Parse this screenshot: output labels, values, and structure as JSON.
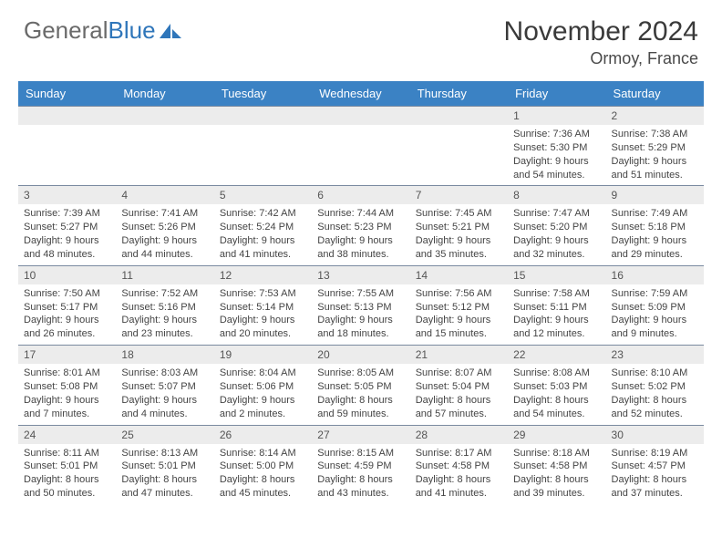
{
  "brand": {
    "part1": "General",
    "part2": "Blue"
  },
  "title": "November 2024",
  "location": "Ormoy, France",
  "header_bg": "#3b82c4",
  "header_text": "#ffffff",
  "daynum_bg": "#ececec",
  "border_color": "#7a8aa0",
  "weekdays": [
    "Sunday",
    "Monday",
    "Tuesday",
    "Wednesday",
    "Thursday",
    "Friday",
    "Saturday"
  ],
  "weeks": [
    [
      null,
      null,
      null,
      null,
      null,
      {
        "n": "1",
        "sr": "7:36 AM",
        "ss": "5:30 PM",
        "dl": "9 hours and 54 minutes."
      },
      {
        "n": "2",
        "sr": "7:38 AM",
        "ss": "5:29 PM",
        "dl": "9 hours and 51 minutes."
      }
    ],
    [
      {
        "n": "3",
        "sr": "7:39 AM",
        "ss": "5:27 PM",
        "dl": "9 hours and 48 minutes."
      },
      {
        "n": "4",
        "sr": "7:41 AM",
        "ss": "5:26 PM",
        "dl": "9 hours and 44 minutes."
      },
      {
        "n": "5",
        "sr": "7:42 AM",
        "ss": "5:24 PM",
        "dl": "9 hours and 41 minutes."
      },
      {
        "n": "6",
        "sr": "7:44 AM",
        "ss": "5:23 PM",
        "dl": "9 hours and 38 minutes."
      },
      {
        "n": "7",
        "sr": "7:45 AM",
        "ss": "5:21 PM",
        "dl": "9 hours and 35 minutes."
      },
      {
        "n": "8",
        "sr": "7:47 AM",
        "ss": "5:20 PM",
        "dl": "9 hours and 32 minutes."
      },
      {
        "n": "9",
        "sr": "7:49 AM",
        "ss": "5:18 PM",
        "dl": "9 hours and 29 minutes."
      }
    ],
    [
      {
        "n": "10",
        "sr": "7:50 AM",
        "ss": "5:17 PM",
        "dl": "9 hours and 26 minutes."
      },
      {
        "n": "11",
        "sr": "7:52 AM",
        "ss": "5:16 PM",
        "dl": "9 hours and 23 minutes."
      },
      {
        "n": "12",
        "sr": "7:53 AM",
        "ss": "5:14 PM",
        "dl": "9 hours and 20 minutes."
      },
      {
        "n": "13",
        "sr": "7:55 AM",
        "ss": "5:13 PM",
        "dl": "9 hours and 18 minutes."
      },
      {
        "n": "14",
        "sr": "7:56 AM",
        "ss": "5:12 PM",
        "dl": "9 hours and 15 minutes."
      },
      {
        "n": "15",
        "sr": "7:58 AM",
        "ss": "5:11 PM",
        "dl": "9 hours and 12 minutes."
      },
      {
        "n": "16",
        "sr": "7:59 AM",
        "ss": "5:09 PM",
        "dl": "9 hours and 9 minutes."
      }
    ],
    [
      {
        "n": "17",
        "sr": "8:01 AM",
        "ss": "5:08 PM",
        "dl": "9 hours and 7 minutes."
      },
      {
        "n": "18",
        "sr": "8:03 AM",
        "ss": "5:07 PM",
        "dl": "9 hours and 4 minutes."
      },
      {
        "n": "19",
        "sr": "8:04 AM",
        "ss": "5:06 PM",
        "dl": "9 hours and 2 minutes."
      },
      {
        "n": "20",
        "sr": "8:05 AM",
        "ss": "5:05 PM",
        "dl": "8 hours and 59 minutes."
      },
      {
        "n": "21",
        "sr": "8:07 AM",
        "ss": "5:04 PM",
        "dl": "8 hours and 57 minutes."
      },
      {
        "n": "22",
        "sr": "8:08 AM",
        "ss": "5:03 PM",
        "dl": "8 hours and 54 minutes."
      },
      {
        "n": "23",
        "sr": "8:10 AM",
        "ss": "5:02 PM",
        "dl": "8 hours and 52 minutes."
      }
    ],
    [
      {
        "n": "24",
        "sr": "8:11 AM",
        "ss": "5:01 PM",
        "dl": "8 hours and 50 minutes."
      },
      {
        "n": "25",
        "sr": "8:13 AM",
        "ss": "5:01 PM",
        "dl": "8 hours and 47 minutes."
      },
      {
        "n": "26",
        "sr": "8:14 AM",
        "ss": "5:00 PM",
        "dl": "8 hours and 45 minutes."
      },
      {
        "n": "27",
        "sr": "8:15 AM",
        "ss": "4:59 PM",
        "dl": "8 hours and 43 minutes."
      },
      {
        "n": "28",
        "sr": "8:17 AM",
        "ss": "4:58 PM",
        "dl": "8 hours and 41 minutes."
      },
      {
        "n": "29",
        "sr": "8:18 AM",
        "ss": "4:58 PM",
        "dl": "8 hours and 39 minutes."
      },
      {
        "n": "30",
        "sr": "8:19 AM",
        "ss": "4:57 PM",
        "dl": "8 hours and 37 minutes."
      }
    ]
  ]
}
